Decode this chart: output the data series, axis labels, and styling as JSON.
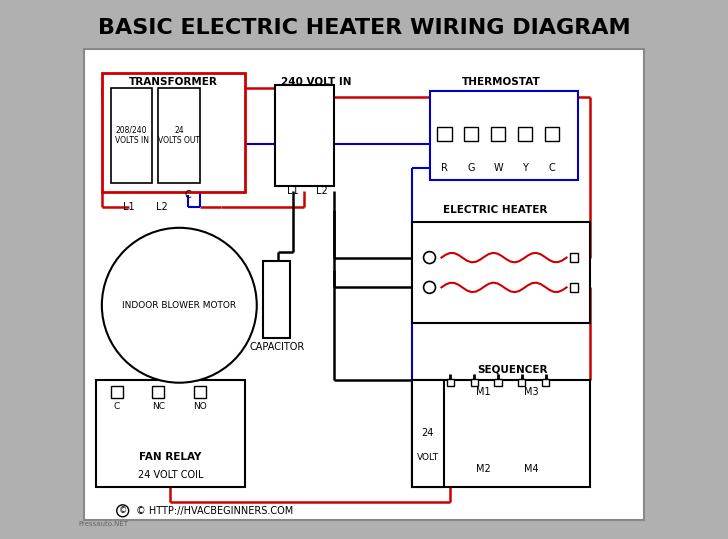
{
  "title": "BASIC ELECTRIC HEATER WIRING DIAGRAM",
  "title_fontsize": 16,
  "title_fontweight": "bold",
  "bg_outer": "#b0b0b0",
  "bg_inner": "#ffffff",
  "wire_red": "#cc0000",
  "wire_black": "#000000",
  "wire_blue": "#0000cc",
  "text_color": "#000000",
  "border_color": "#000000",
  "watermark": "Pressauto.NET",
  "website": "© HTTP://HVACBEGINNERS.COM"
}
